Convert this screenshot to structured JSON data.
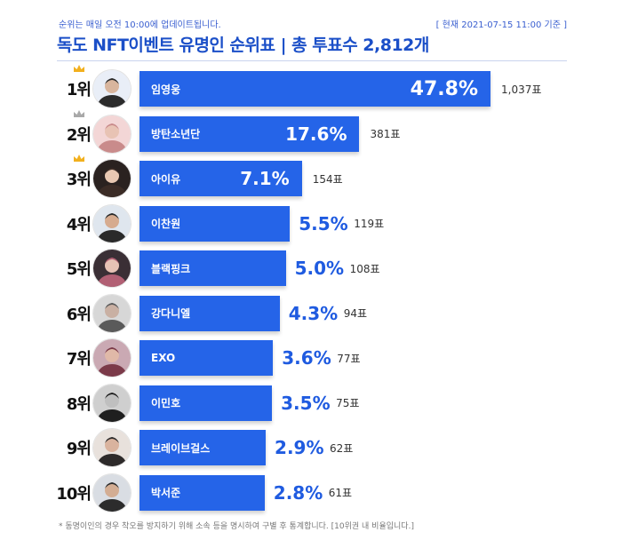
{
  "header": {
    "update_note": "순위는 매일 오전 10:00에 업데이트됩니다.",
    "timestamp": "[ 현재 2021-07-15 11:00 기준 ]",
    "title": "독도 NFT이벤트 유명인 순위표 | 총 투표수 2,812개"
  },
  "footnote": "* 동명이인의 경우 착오를 방지하기 위해 소속 등을 명시하여 구별 후 통계합니다. [10위권 내 비율입니다.]",
  "colors": {
    "bar": "#2564e8",
    "percent_outside": "#1f5be0",
    "gold_crown": "#f2b01e",
    "silver_crown": "#a9a9a9"
  },
  "chart_data": {
    "type": "bar",
    "orientation": "horizontal",
    "title": "독도 NFT이벤트 유명인 순위표 | 총 투표수 2,812개",
    "grid": false,
    "legend": "none",
    "xlim": [
      0,
      47.8
    ],
    "rows": [
      {
        "rank": "1위",
        "name": "임영웅",
        "percent": 47.8,
        "percent_label": "47.8%",
        "votes": 1037,
        "votes_label": "1,037표",
        "crown": "gold",
        "avatar": "avatar-1"
      },
      {
        "rank": "2위",
        "name": "방탄소년단",
        "percent": 17.6,
        "percent_label": "17.6%",
        "votes": 381,
        "votes_label": "381표",
        "crown": "silver",
        "avatar": "avatar-2"
      },
      {
        "rank": "3위",
        "name": "아이유",
        "percent": 7.1,
        "percent_label": "7.1%",
        "votes": 154,
        "votes_label": "154표",
        "crown": "gold",
        "avatar": "avatar-3"
      },
      {
        "rank": "4위",
        "name": "이찬원",
        "percent": 5.5,
        "percent_label": "5.5%",
        "votes": 119,
        "votes_label": "119표",
        "crown": "",
        "avatar": "avatar-4"
      },
      {
        "rank": "5위",
        "name": "블랙핑크",
        "percent": 5.0,
        "percent_label": "5.0%",
        "votes": 108,
        "votes_label": "108표",
        "crown": "",
        "avatar": "avatar-5"
      },
      {
        "rank": "6위",
        "name": "강다니엘",
        "percent": 4.3,
        "percent_label": "4.3%",
        "votes": 94,
        "votes_label": "94표",
        "crown": "",
        "avatar": "avatar-6"
      },
      {
        "rank": "7위",
        "name": "EXO",
        "percent": 3.6,
        "percent_label": "3.6%",
        "votes": 77,
        "votes_label": "77표",
        "crown": "",
        "avatar": "avatar-7"
      },
      {
        "rank": "8위",
        "name": "이민호",
        "percent": 3.5,
        "percent_label": "3.5%",
        "votes": 75,
        "votes_label": "75표",
        "crown": "",
        "avatar": "avatar-8"
      },
      {
        "rank": "9위",
        "name": "브레이브걸스",
        "percent": 2.9,
        "percent_label": "2.9%",
        "votes": 62,
        "votes_label": "62표",
        "crown": "",
        "avatar": "avatar-9"
      },
      {
        "rank": "10위",
        "name": "박서준",
        "percent": 2.8,
        "percent_label": "2.8%",
        "votes": 61,
        "votes_label": "61표",
        "crown": "",
        "avatar": "avatar-10"
      }
    ]
  }
}
